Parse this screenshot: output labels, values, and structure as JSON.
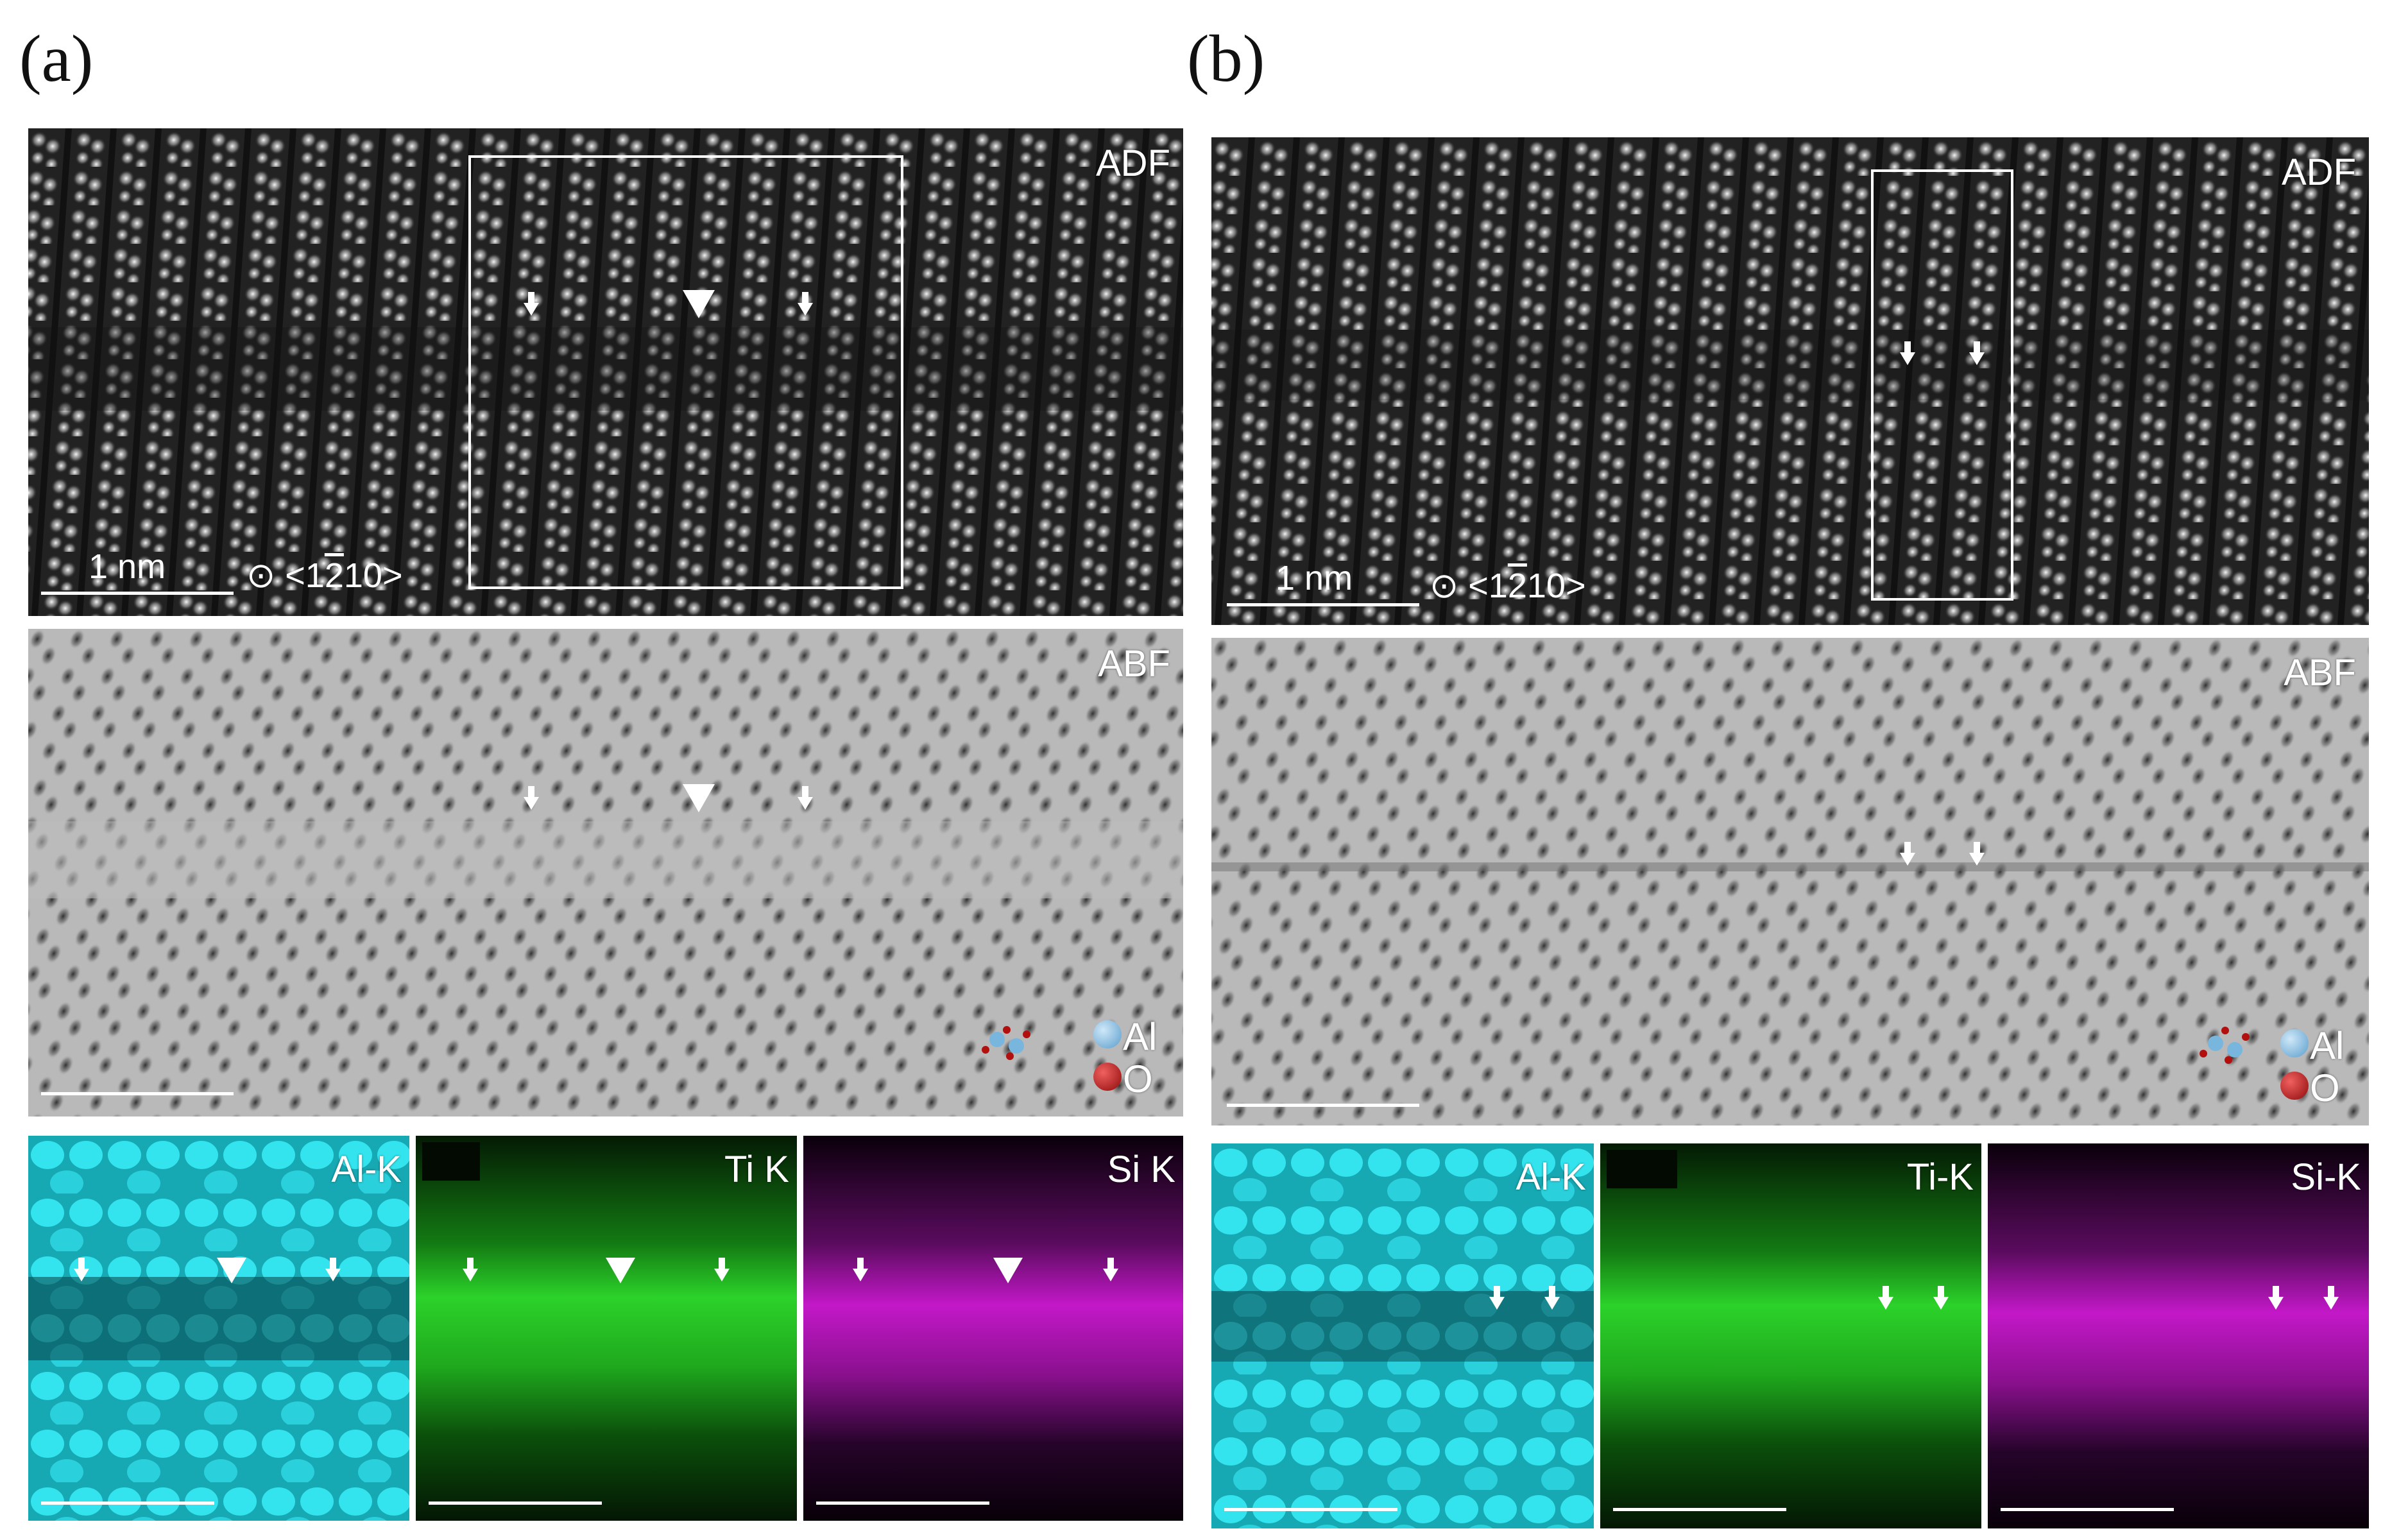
{
  "panels": [
    {
      "letter": "(a)",
      "adf": {
        "label": "ADF",
        "scale_text": "1 nm",
        "zone_prefix": "<1",
        "zone_overline": "2",
        "zone_suffix": "10>"
      },
      "abf": {
        "label": "ABF",
        "legend": [
          "Al",
          "O"
        ]
      },
      "eds": [
        {
          "label": "Al-K",
          "color": "#28d8e0"
        },
        {
          "label": "Ti K",
          "color": "#22c51e"
        },
        {
          "label": "Si K",
          "color": "#c318c8"
        }
      ]
    },
    {
      "letter": "(b)",
      "adf": {
        "label": "ADF",
        "scale_text": "1 nm",
        "zone_prefix": "<1",
        "zone_overline": "2",
        "zone_suffix": "10>"
      },
      "abf": {
        "label": "ABF",
        "legend": [
          "Al",
          "O"
        ]
      },
      "eds": [
        {
          "label": "Al-K",
          "color": "#28d8e0"
        },
        {
          "label": "Ti-K",
          "color": "#22c51e"
        },
        {
          "label": "Si-K",
          "color": "#c318c8"
        }
      ]
    }
  ],
  "colors": {
    "adf_bg": "#1e1e1e",
    "abf_bg": "#b8b8b8",
    "legend_al": "#79b6de",
    "legend_o": "#b20f0f",
    "marker": "#ffffff"
  }
}
